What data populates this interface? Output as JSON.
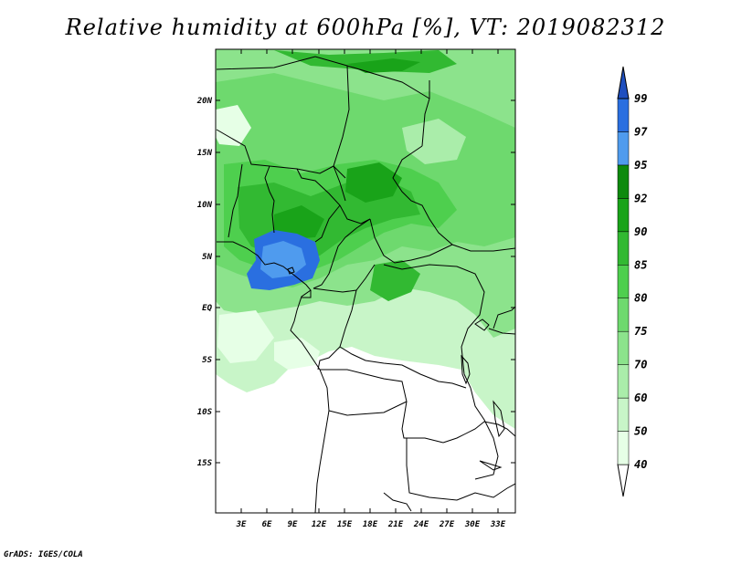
{
  "title": "Relative humidity at 600hPa [%], VT: 2019082312",
  "credit": "GrADS: IGES/COLA",
  "map": {
    "lat_labels": [
      "20N",
      "15N",
      "10N",
      "5N",
      "EQ",
      "5S",
      "10S",
      "15S"
    ],
    "lon_labels": [
      "3E",
      "6E",
      "9E",
      "12E",
      "15E",
      "18E",
      "21E",
      "24E",
      "27E",
      "30E",
      "33E"
    ]
  },
  "colorbar": {
    "levels": [
      "40",
      "50",
      "60",
      "70",
      "75",
      "80",
      "85",
      "90",
      "92",
      "95",
      "97",
      "99"
    ],
    "colors": [
      "#ffffff",
      "#e6ffe6",
      "#c8f5c8",
      "#aaedaa",
      "#8ce38c",
      "#6ed96e",
      "#4ecf4e",
      "#32b932",
      "#19a319",
      "#0d8a0d",
      "#4f9bee",
      "#2a6fe0",
      "#1f4fbf"
    ]
  }
}
